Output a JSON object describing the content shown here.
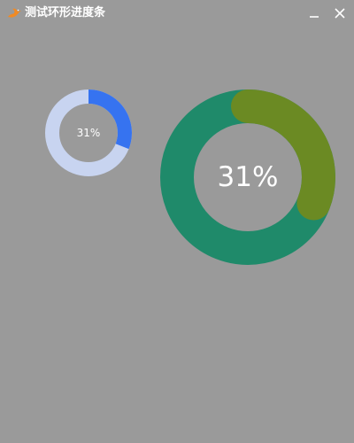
{
  "window": {
    "title": "测试环形进度条",
    "icons": {
      "app": "bird-logo-icon",
      "minimize": "minimize-icon",
      "close": "close-icon"
    },
    "colors": {
      "background": "#9a9a9a",
      "title_text": "#ffffff",
      "app_icon": "#f08a24"
    }
  },
  "rings": [
    {
      "progress": 0.31,
      "label": "31%",
      "track_color": "#c8d4f0",
      "progress_color": "#3673f0",
      "cap": "butt"
    },
    {
      "progress": 0.31,
      "label": "31%",
      "track_color": "#1f8a6a",
      "progress_color": "#6b8a23",
      "cap": "round"
    }
  ]
}
